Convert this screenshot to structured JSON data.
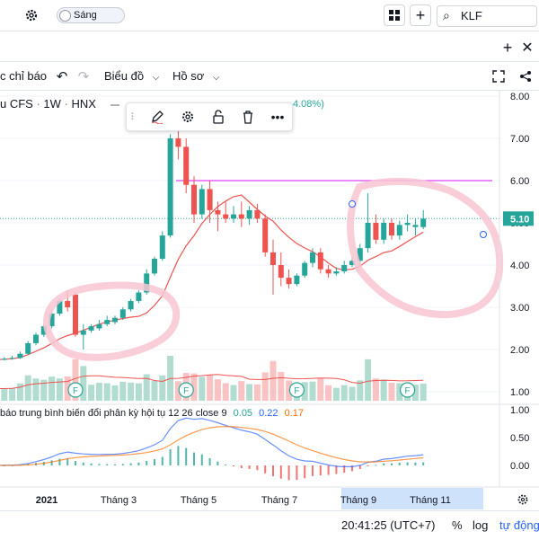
{
  "header": {
    "theme_label": "Sáng",
    "search_value": "KLF",
    "add_label": "+"
  },
  "toolbar": {
    "indicators_label": "c chỉ báo",
    "chart_type_label": "Biểu đồ",
    "profile_label": "Hồ sơ"
  },
  "legend": {
    "symbol_name": "u CFS",
    "interval": "1W",
    "exchange": "HNX",
    "change_text": "4.08%)"
  },
  "macd": {
    "label": "báo trung bình biến đổi phân kỳ hội tụ 12 26 close 9",
    "v1": "0.05",
    "v2": "0.22",
    "v3": "0.17",
    "color_macd": "#2962ff",
    "color_signal": "#ff6d00",
    "color_hist": "#ef5350"
  },
  "footer": {
    "time": "20:41:25 (UTC+7)",
    "percent": "%",
    "log": "log",
    "auto": "tự động"
  },
  "chart_data": {
    "type": "candlestick",
    "price_axis_ticks": [
      "8.00",
      "7.00",
      "6.00",
      "5.00",
      "4.00",
      "3.00",
      "2.00",
      "1.00"
    ],
    "last_price_label": "5.10",
    "x_tick_labels": [
      "2021",
      "Tháng 3",
      "Tháng 5",
      "Tháng 7",
      "Tháng 9",
      "Tháng 11"
    ],
    "macd_axis_ticks": [
      "1.00",
      "0.50",
      "0.00"
    ],
    "horizontal_line_price": 6.0,
    "colors": {
      "up": "#26a69a",
      "down": "#ef5350",
      "ma": "#ef5350",
      "hline": "#e040fb",
      "grid": "#f0f3fa"
    },
    "candles": [
      [
        1.75,
        1.8,
        1.72,
        1.76
      ],
      [
        1.76,
        1.82,
        1.74,
        1.78
      ],
      [
        1.78,
        1.85,
        1.76,
        1.8
      ],
      [
        1.8,
        1.95,
        1.78,
        1.9
      ],
      [
        1.9,
        2.2,
        1.88,
        2.15
      ],
      [
        2.15,
        2.4,
        2.1,
        2.35
      ],
      [
        2.35,
        2.6,
        2.3,
        2.55
      ],
      [
        2.55,
        2.9,
        2.5,
        2.85
      ],
      [
        2.85,
        3.2,
        2.8,
        3.15
      ],
      [
        3.15,
        3.4,
        2.9,
        3.0
      ],
      [
        3.3,
        3.35,
        2.3,
        2.35
      ],
      [
        2.35,
        2.6,
        2.0,
        2.45
      ],
      [
        2.45,
        2.6,
        2.4,
        2.55
      ],
      [
        2.5,
        2.7,
        2.45,
        2.6
      ],
      [
        2.6,
        2.8,
        2.55,
        2.7
      ],
      [
        2.65,
        2.8,
        2.6,
        2.75
      ],
      [
        2.75,
        3.0,
        2.7,
        2.95
      ],
      [
        2.95,
        3.2,
        2.9,
        3.15
      ],
      [
        3.15,
        3.4,
        3.1,
        3.35
      ],
      [
        3.35,
        3.9,
        3.3,
        3.8
      ],
      [
        3.8,
        4.2,
        3.75,
        4.15
      ],
      [
        4.15,
        4.8,
        4.1,
        4.7
      ],
      [
        4.7,
        7.1,
        4.65,
        7.0
      ],
      [
        7.0,
        7.3,
        6.5,
        6.8
      ],
      [
        6.8,
        7.0,
        5.7,
        5.9
      ],
      [
        5.9,
        6.1,
        5.0,
        5.2
      ],
      [
        5.2,
        5.9,
        5.1,
        5.8
      ],
      [
        5.8,
        6.0,
        5.0,
        5.3
      ],
      [
        5.3,
        5.5,
        4.8,
        5.2
      ],
      [
        5.2,
        5.5,
        5.0,
        5.1
      ],
      [
        5.1,
        5.4,
        5.0,
        5.2
      ],
      [
        5.2,
        5.5,
        4.9,
        5.1
      ],
      [
        5.1,
        5.4,
        4.95,
        5.3
      ],
      [
        5.3,
        5.45,
        5.0,
        5.1
      ],
      [
        5.1,
        5.2,
        4.2,
        4.3
      ],
      [
        4.3,
        4.6,
        3.3,
        4.0
      ],
      [
        4.0,
        4.3,
        3.5,
        3.7
      ],
      [
        3.7,
        3.9,
        3.45,
        3.55
      ],
      [
        3.55,
        3.8,
        3.5,
        3.75
      ],
      [
        3.75,
        4.1,
        3.7,
        4.05
      ],
      [
        4.05,
        4.4,
        3.95,
        4.3
      ],
      [
        4.3,
        4.4,
        3.8,
        3.9
      ],
      [
        3.9,
        4.0,
        3.7,
        3.8
      ],
      [
        3.8,
        3.95,
        3.75,
        3.85
      ],
      [
        3.85,
        4.1,
        3.8,
        4.0
      ],
      [
        4.0,
        4.2,
        3.95,
        4.1
      ],
      [
        4.1,
        4.5,
        4.0,
        4.4
      ],
      [
        4.4,
        5.7,
        4.3,
        5.0
      ],
      [
        5.0,
        5.2,
        4.5,
        4.6
      ],
      [
        4.6,
        5.1,
        4.5,
        5.0
      ],
      [
        5.0,
        5.1,
        4.6,
        4.7
      ],
      [
        4.7,
        5.05,
        4.6,
        4.95
      ],
      [
        4.95,
        5.2,
        4.8,
        5.0
      ],
      [
        4.9,
        5.1,
        4.7,
        4.95
      ],
      [
        4.9,
        5.3,
        4.85,
        5.1
      ]
    ]
  }
}
